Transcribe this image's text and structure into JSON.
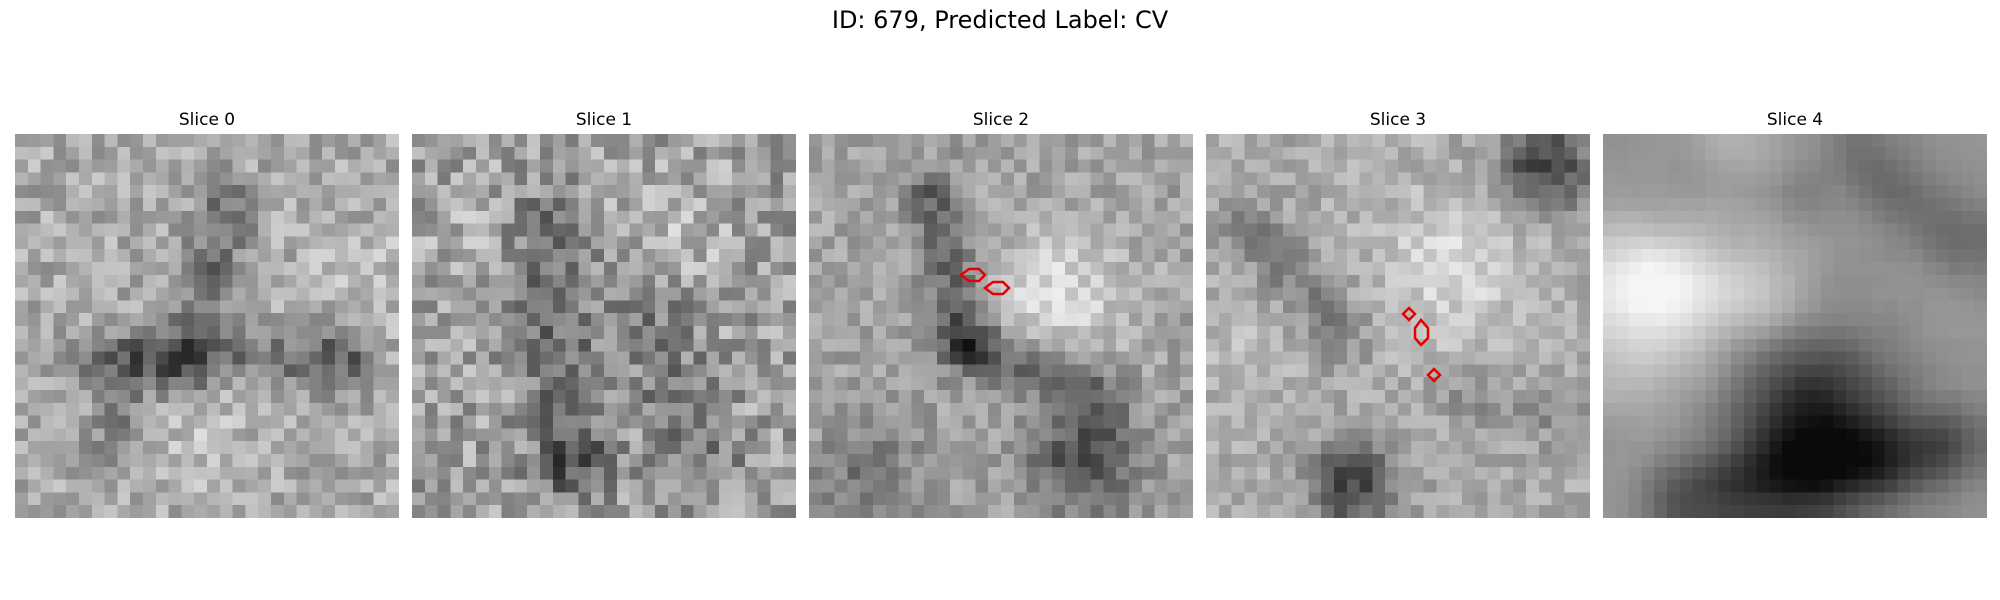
{
  "title": "ID: 679, Predicted Label: CV",
  "slices": [
    {
      "label": "Slice 0",
      "contours": []
    },
    {
      "label": "Slice 1",
      "contours": []
    },
    {
      "label": "Slice 2",
      "contours": [
        "contour-a",
        "contour-b"
      ]
    },
    {
      "label": "Slice 3",
      "contours": [
        "contour-a",
        "contour-b",
        "contour-c"
      ]
    },
    {
      "label": "Slice 4",
      "contours": []
    }
  ],
  "colors": {
    "contour": "#e60000",
    "background": "#ffffff"
  },
  "colormap": "gray"
}
